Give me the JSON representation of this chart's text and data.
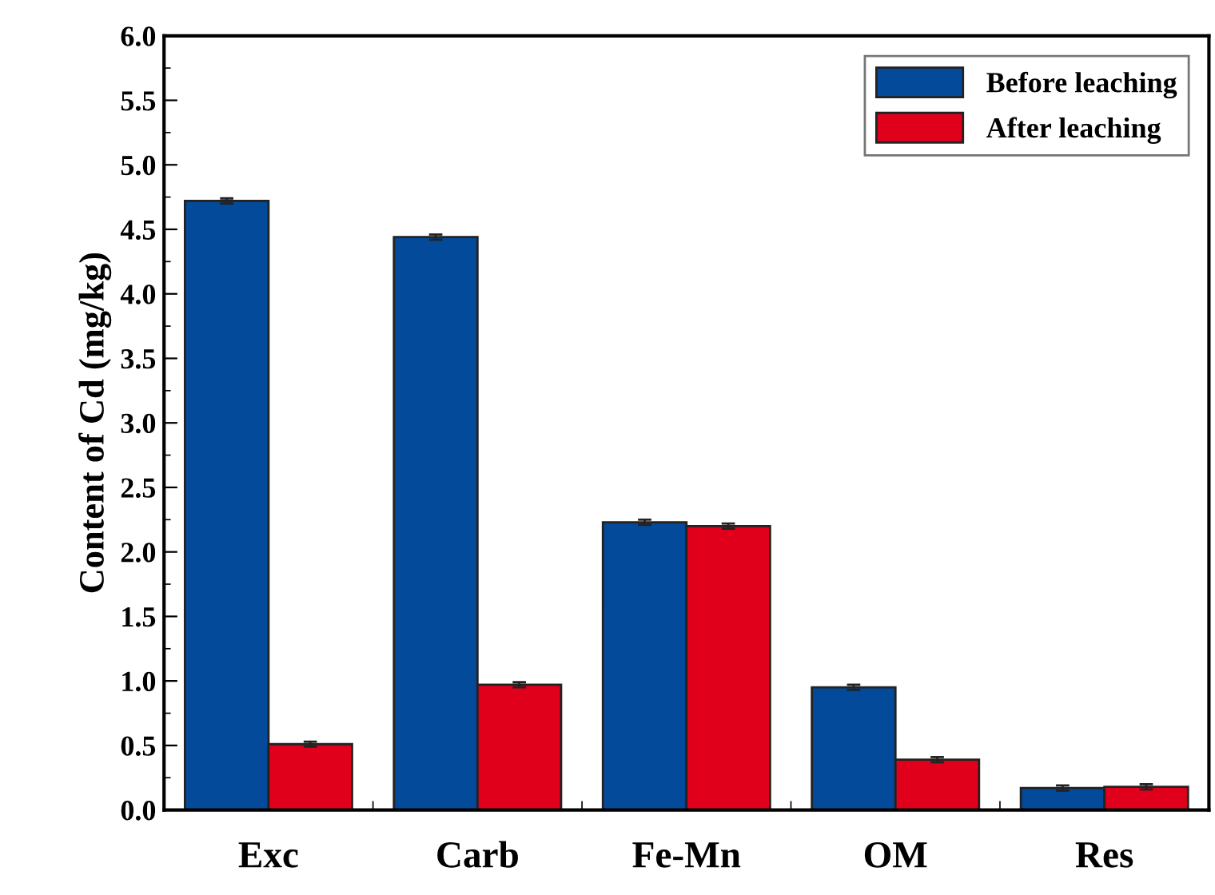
{
  "chart_data": {
    "type": "bar",
    "ylabel": "Content of Cd (mg/kg)",
    "categories": [
      "Exc",
      "Carb",
      "Fe-Mn",
      "OM",
      "Res"
    ],
    "series": [
      {
        "name": "Before leaching",
        "color": "#034a9a",
        "values": [
          4.72,
          4.44,
          2.23,
          0.95,
          0.17
        ],
        "errors": [
          0.02,
          0.02,
          0.02,
          0.02,
          0.02
        ]
      },
      {
        "name": "After leaching",
        "color": "#e0001b",
        "values": [
          0.51,
          0.97,
          2.2,
          0.39,
          0.18
        ],
        "errors": [
          0.02,
          0.02,
          0.02,
          0.02,
          0.02
        ]
      }
    ],
    "ylim": [
      0,
      6
    ],
    "yticks": [
      {
        "value": 0,
        "label": "0.0"
      },
      0.5,
      {
        "value": 1,
        "label": "1.0"
      },
      1.5,
      {
        "value": 2,
        "label": "2.0"
      },
      2.5,
      {
        "value": 3,
        "label": "3.0"
      },
      3.5,
      {
        "value": 4,
        "label": "4.0"
      },
      4.5,
      {
        "value": 5,
        "label": "5.0"
      },
      5.5,
      {
        "value": 6,
        "label": "6.0"
      }
    ],
    "grid": false,
    "legend": "top right"
  }
}
